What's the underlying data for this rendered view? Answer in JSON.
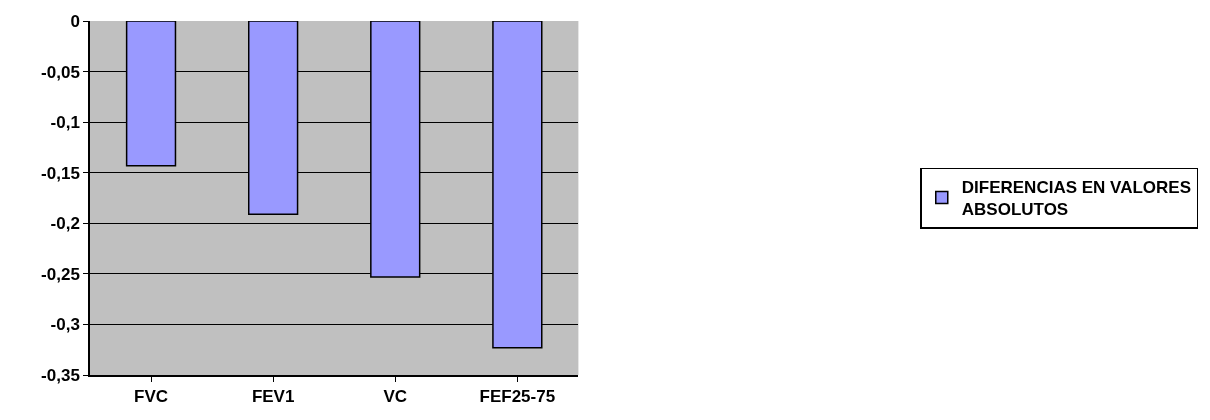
{
  "chart_data": {
    "type": "bar",
    "categories": [
      "FVC",
      "FEV1",
      "VC",
      "FEF25-75"
    ],
    "series": [
      {
        "name": "DIFERENCIAS EN VALORES ABSOLUTOS",
        "color": "#9999ff",
        "values": [
          -0.143,
          -0.191,
          -0.253,
          -0.323
        ]
      }
    ],
    "ylim": [
      -0.35,
      0
    ],
    "yticks": [
      {
        "value": 0,
        "label": "0"
      },
      {
        "value": -0.05,
        "label": "-0,05"
      },
      {
        "value": -0.1,
        "label": "-0,1"
      },
      {
        "value": -0.15,
        "label": "-0,15"
      },
      {
        "value": -0.2,
        "label": "-0,2"
      },
      {
        "value": -0.25,
        "label": "-0,25"
      },
      {
        "value": -0.3,
        "label": "-0,3"
      },
      {
        "value": -0.35,
        "label": "-0,35"
      }
    ],
    "grid": "y",
    "legend": "right"
  }
}
